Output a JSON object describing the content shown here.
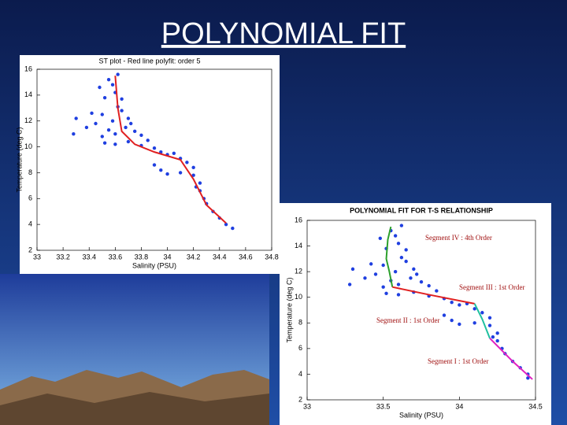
{
  "title": "POLYNOMIAL FIT",
  "chart_data": [
    {
      "type": "scatter",
      "title": "ST plot - Red line polyfit: order 5",
      "x_label": "Salinity (PSU)",
      "y_label": "Temperature (deg C)",
      "xlim": [
        33,
        34.8
      ],
      "ylim": [
        2,
        16
      ],
      "xticks": [
        33,
        33.2,
        33.4,
        33.6,
        33.8,
        34,
        34.2,
        34.4,
        34.6,
        34.8
      ],
      "yticks": [
        2,
        4,
        6,
        8,
        10,
        12,
        14,
        16
      ],
      "series": [
        {
          "color": "#1f3fe0",
          "x": [
            33.48,
            33.52,
            33.55,
            33.6,
            33.62,
            33.5,
            33.58,
            33.65,
            33.7,
            33.45,
            33.55,
            33.6,
            33.68,
            33.75,
            33.8,
            33.3,
            33.38,
            33.42,
            33.5,
            33.52,
            33.6,
            33.7,
            33.8,
            33.9,
            33.95,
            34.0,
            34.05,
            34.1,
            34.15,
            34.2,
            33.9,
            33.95,
            34.0,
            34.2,
            34.25,
            34.25,
            34.28,
            34.3,
            34.35,
            34.4,
            34.45,
            34.5,
            33.65,
            33.58,
            33.72,
            33.85,
            34.1,
            34.22,
            33.28,
            33.62
          ],
          "values": [
            14.6,
            13.8,
            15.2,
            14.2,
            13.1,
            12.5,
            12.0,
            12.8,
            12.2,
            11.8,
            11.3,
            11.0,
            11.5,
            11.2,
            10.9,
            12.2,
            11.5,
            12.6,
            10.8,
            10.3,
            10.2,
            10.4,
            10.1,
            9.9,
            9.6,
            9.4,
            9.5,
            9.1,
            8.8,
            8.4,
            8.6,
            8.2,
            7.9,
            7.8,
            7.2,
            6.6,
            6.0,
            5.6,
            5.0,
            4.5,
            4.0,
            3.7,
            13.7,
            14.8,
            11.8,
            10.5,
            8.0,
            6.9,
            11.0,
            15.6
          ]
        }
      ],
      "fit_lines": [
        {
          "color": "#e02020",
          "x": [
            33.6,
            33.62,
            33.65,
            33.75,
            33.9,
            34.1,
            34.2,
            34.3,
            34.45
          ],
          "values": [
            15.5,
            13,
            11.2,
            10.2,
            9.6,
            9,
            7.5,
            5.5,
            4.1
          ]
        }
      ]
    },
    {
      "type": "scatter",
      "title": "POLYNOMIAL FIT FOR T-S RELATIONSHIP",
      "x_label": "Salinity (PSU)",
      "y_label": "Temperature (deg C)",
      "xlim": [
        33,
        34.5
      ],
      "ylim": [
        2,
        16
      ],
      "xticks": [
        33,
        33.5,
        34,
        34.5
      ],
      "yticks": [
        2,
        4,
        6,
        8,
        10,
        12,
        14,
        16
      ],
      "series": [
        {
          "color": "#1f3fe0",
          "x": [
            33.48,
            33.52,
            33.55,
            33.6,
            33.62,
            33.5,
            33.58,
            33.65,
            33.7,
            33.45,
            33.55,
            33.6,
            33.68,
            33.75,
            33.8,
            33.3,
            33.38,
            33.42,
            33.5,
            33.52,
            33.6,
            33.7,
            33.8,
            33.9,
            33.95,
            34.0,
            34.05,
            34.1,
            34.15,
            34.2,
            33.9,
            33.95,
            34.0,
            34.2,
            34.25,
            34.25,
            34.28,
            34.3,
            34.35,
            34.4,
            34.45,
            34.45,
            33.65,
            33.58,
            33.72,
            33.85,
            34.1,
            34.22,
            33.28,
            33.62
          ],
          "values": [
            14.6,
            13.8,
            15.2,
            14.2,
            13.1,
            12.5,
            12.0,
            12.8,
            12.2,
            11.8,
            11.3,
            11.0,
            11.5,
            11.2,
            10.9,
            12.2,
            11.5,
            12.6,
            10.8,
            10.3,
            10.2,
            10.4,
            10.1,
            9.9,
            9.6,
            9.4,
            9.5,
            9.1,
            8.8,
            8.4,
            8.6,
            8.2,
            7.9,
            7.8,
            7.2,
            6.6,
            6.0,
            5.6,
            5.0,
            4.5,
            4.0,
            3.7,
            13.7,
            14.8,
            11.8,
            10.5,
            8.0,
            6.9,
            11.0,
            15.6
          ]
        }
      ],
      "fit_lines": [
        {
          "color": "#2ca02c",
          "x": [
            33.55,
            33.53,
            33.52,
            33.54,
            33.56
          ],
          "values": [
            15.5,
            14.5,
            13,
            12,
            10.8
          ]
        },
        {
          "color": "#e02020",
          "x": [
            33.56,
            33.8,
            34.1
          ],
          "values": [
            10.8,
            10.2,
            9.5
          ]
        },
        {
          "color": "#20c0a0",
          "x": [
            34.1,
            34.15,
            34.2
          ],
          "values": [
            9.5,
            8.3,
            6.8
          ]
        },
        {
          "color": "#e020c0",
          "x": [
            34.2,
            34.35,
            34.48
          ],
          "values": [
            6.8,
            5,
            3.6
          ]
        }
      ],
      "annotations": [
        {
          "text": "Segment IV : 4th Order",
          "color": "#a01010"
        },
        {
          "text": "Segment III : 1st Order",
          "color": "#a01010"
        },
        {
          "text": "Segment II : 1st Order",
          "color": "#a01010"
        },
        {
          "text": "Segment I : 1st Order",
          "color": "#a01010"
        }
      ]
    }
  ]
}
